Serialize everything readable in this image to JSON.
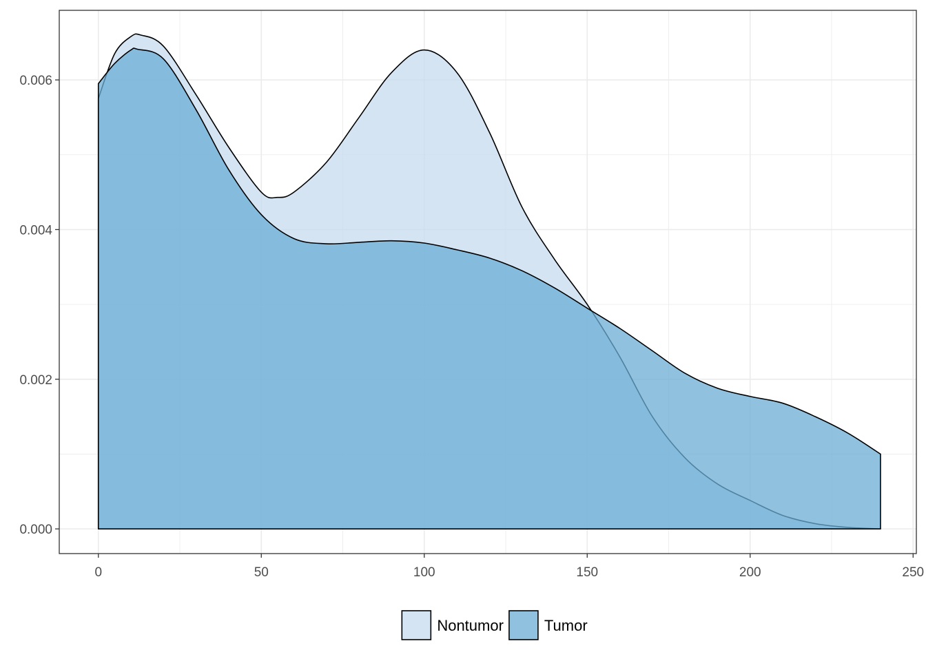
{
  "chart_data": {
    "type": "area",
    "title": "",
    "xlabel": "",
    "ylabel": "",
    "xlim": [
      -12,
      251
    ],
    "ylim": [
      -0.00033,
      0.00693
    ],
    "x_ticks": [
      0,
      50,
      100,
      150,
      200,
      250
    ],
    "x_tick_labels": [
      "0",
      "50",
      "100",
      "150",
      "200",
      "250"
    ],
    "y_ticks": [
      0,
      0.002,
      0.004,
      0.006
    ],
    "y_tick_labels": [
      "0.000",
      "0.002",
      "0.004",
      "0.006"
    ],
    "grid": true,
    "legend_position": "bottom",
    "series": [
      {
        "name": "Nontumor",
        "color": "#c6dbef",
        "x": [
          0,
          5,
          10,
          13,
          20,
          30,
          40,
          50,
          55,
          60,
          70,
          80,
          90,
          100,
          110,
          120,
          130,
          140,
          150,
          160,
          170,
          180,
          190,
          200,
          210,
          220,
          230,
          240
        ],
        "y": [
          0.00575,
          0.00635,
          0.00658,
          0.0066,
          0.00645,
          0.0058,
          0.0051,
          0.0045,
          0.00443,
          0.0045,
          0.0049,
          0.0055,
          0.0061,
          0.0064,
          0.0061,
          0.0053,
          0.0043,
          0.0036,
          0.003,
          0.0023,
          0.0015,
          0.00095,
          0.0006,
          0.00038,
          0.00018,
          7e-05,
          2e-05,
          0.0
        ]
      },
      {
        "name": "Tumor",
        "color": "#6baed6",
        "x": [
          0,
          5,
          10,
          12,
          20,
          30,
          40,
          50,
          60,
          70,
          80,
          90,
          100,
          110,
          120,
          130,
          140,
          150,
          160,
          170,
          180,
          190,
          200,
          210,
          220,
          230,
          240
        ],
        "y": [
          0.00595,
          0.00622,
          0.0064,
          0.00641,
          0.00628,
          0.0056,
          0.0048,
          0.0042,
          0.00388,
          0.00381,
          0.00383,
          0.00385,
          0.00382,
          0.00373,
          0.00362,
          0.00345,
          0.00322,
          0.00295,
          0.00268,
          0.00238,
          0.00208,
          0.00188,
          0.00177,
          0.00168,
          0.0015,
          0.00128,
          0.001
        ]
      }
    ]
  }
}
